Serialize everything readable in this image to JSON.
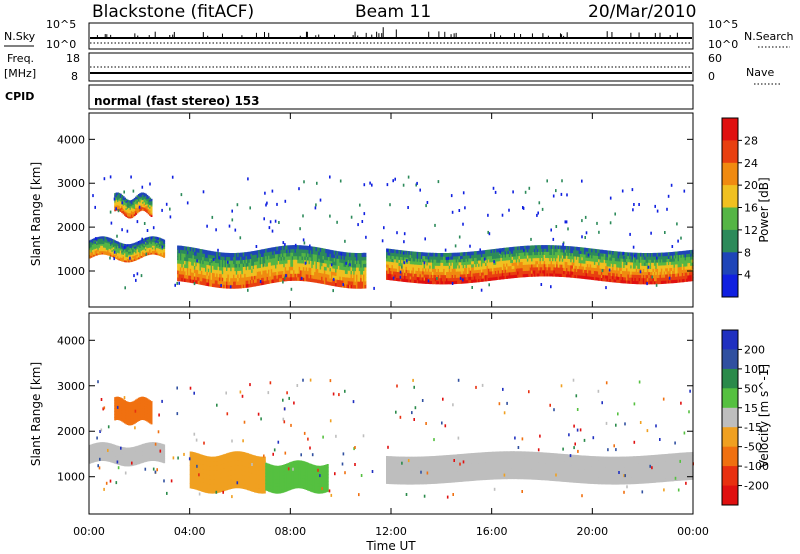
{
  "header": {
    "station": "Blackstone (fitACF)",
    "beam": "Beam 11",
    "date": "20/Mar/2010"
  },
  "noise_panel": {
    "left_label": "N.Sky",
    "right_label": "N.Search",
    "ticks_left": [
      "10^5",
      "10^0"
    ],
    "ticks_right": [
      "10^5",
      "10^0"
    ]
  },
  "freq_panel": {
    "left_label_top": "Freq.",
    "left_label_unit": "[MHz]",
    "right_label": "Nave",
    "ticks_left": [
      "18",
      "8"
    ],
    "ticks_right": [
      "60",
      "0"
    ]
  },
  "cpid_panel": {
    "label": "CPID",
    "text": "normal (fast stereo) 153"
  },
  "power_panel": {
    "ylabel": "Slant Range [km]",
    "yticks": [
      "4000",
      "3000",
      "2000",
      "1000"
    ],
    "colorbar_label": "Power [dB]",
    "colorbar_ticks": [
      "28",
      "24",
      "20",
      "16",
      "12",
      "8",
      "4"
    ],
    "colors": [
      "#1020e0",
      "#1f45b8",
      "#2c8a5a",
      "#55b545",
      "#f0c020",
      "#f08a10",
      "#e84010",
      "#e01010"
    ]
  },
  "velocity_panel": {
    "ylabel": "Slant Range [km]",
    "yticks": [
      "4000",
      "3000",
      "2000",
      "1000"
    ],
    "colorbar_label": "Velocity [m s^-1]",
    "colorbar_ticks": [
      "200",
      "100",
      "50",
      "15",
      "-15",
      "-50",
      "-100",
      "-200"
    ],
    "colors": [
      "#2030c0",
      "#3050a0",
      "#2a8a4a",
      "#55c040",
      "#bebebe",
      "#f0a020",
      "#f07010",
      "#e83010",
      "#e01010"
    ]
  },
  "x_axis": {
    "label": "Time UT",
    "ticks": [
      "00:00",
      "04:00",
      "08:00",
      "12:00",
      "16:00",
      "20:00",
      "00:00"
    ]
  },
  "chart_data": [
    {
      "type": "heatmap",
      "name": "power",
      "x_range_hours": [
        0,
        24
      ],
      "y_range_km": [
        180,
        4600
      ],
      "color_range_db": [
        0,
        30
      ],
      "regions": [
        {
          "t": [
            0.0,
            3.0
          ],
          "range_km": [
            1300,
            1700
          ],
          "power_db": 16
        },
        {
          "t": [
            1.0,
            2.5
          ],
          "range_km": [
            2300,
            2700
          ],
          "power_db": 18
        },
        {
          "t": [
            3.5,
            11.0
          ],
          "range_km": [
            700,
            1500
          ],
          "power_db": 18
        },
        {
          "t": [
            11.8,
            24.0
          ],
          "range_km": [
            800,
            1500
          ],
          "power_db": 20
        }
      ]
    },
    {
      "type": "heatmap",
      "name": "velocity",
      "x_range_hours": [
        0,
        24
      ],
      "y_range_km": [
        180,
        4600
      ],
      "color_range": [
        -200,
        200
      ],
      "regions": [
        {
          "t": [
            0.0,
            3.0
          ],
          "range_km": [
            1300,
            1700
          ],
          "velocity": 0
        },
        {
          "t": [
            1.0,
            2.5
          ],
          "range_km": [
            2200,
            2700
          ],
          "velocity": -80
        },
        {
          "t": [
            4.0,
            7.0
          ],
          "range_km": [
            700,
            1500
          ],
          "velocity": -40
        },
        {
          "t": [
            7.0,
            9.5
          ],
          "range_km": [
            700,
            1300
          ],
          "velocity": 40
        },
        {
          "t": [
            11.8,
            24.0
          ],
          "range_km": [
            900,
            1500
          ],
          "velocity": 0
        }
      ]
    }
  ]
}
